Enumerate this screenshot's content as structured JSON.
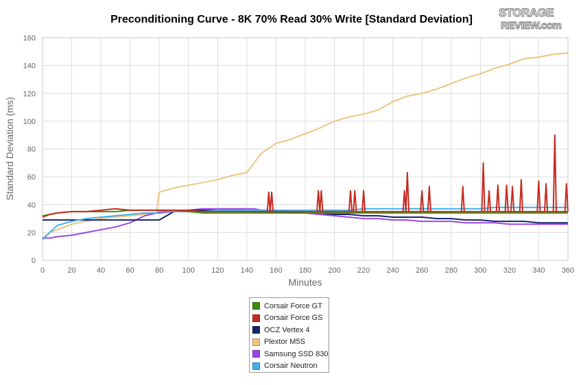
{
  "title": "Preconditioning Curve - 8K 70% Read 30% Write [Standard Deviation]",
  "logo": {
    "line1": "STORAGE",
    "line2": "REVIEW.com"
  },
  "colors": {
    "Corsair Force GT": "#3e8e0e",
    "Corsair Force GS": "#c62a22",
    "OCZ Vertex 4": "#16236e",
    "Plextor M5S": "#edc47e",
    "Samsung SSD 830": "#9a46e8",
    "Corsair Neutron": "#3fb0ec"
  },
  "chart_data": {
    "type": "line",
    "title": "Preconditioning Curve - 8K 70% Read 30% Write [Standard Deviation]",
    "xlabel": "Minutes",
    "ylabel": "Standard Deviation (ms)",
    "xlim": [
      0,
      360
    ],
    "ylim": [
      0,
      160
    ],
    "xticks": [
      0,
      20,
      40,
      60,
      80,
      100,
      120,
      140,
      160,
      180,
      200,
      220,
      240,
      260,
      280,
      300,
      320,
      340,
      360
    ],
    "yticks": [
      0,
      20,
      40,
      60,
      80,
      100,
      120,
      140,
      160
    ],
    "grid": true,
    "legend_position": "bottom-center",
    "x": [
      0,
      5,
      10,
      20,
      30,
      40,
      50,
      60,
      70,
      78,
      80,
      90,
      100,
      110,
      120,
      130,
      140,
      145,
      150,
      160,
      170,
      180,
      190,
      200,
      210,
      220,
      230,
      240,
      250,
      260,
      270,
      280,
      290,
      300,
      310,
      320,
      330,
      340,
      350,
      360
    ],
    "series": [
      {
        "name": "Corsair Force GT",
        "values": [
          32,
          33,
          34,
          35,
          35,
          35,
          35,
          36,
          36,
          36,
          36,
          36,
          35,
          34,
          34,
          34,
          34,
          34,
          34,
          34,
          34,
          34,
          34,
          34,
          34,
          34,
          34,
          34,
          34,
          34,
          34,
          34,
          34,
          34,
          34,
          34,
          34,
          34,
          34,
          34
        ]
      },
      {
        "name": "Corsair Force GS",
        "values": [
          31,
          33,
          34,
          35,
          35,
          36,
          37,
          36,
          36,
          36,
          36,
          36,
          36,
          35,
          35,
          35,
          35,
          35,
          35,
          35,
          35,
          35,
          35,
          35,
          35,
          35,
          35,
          35,
          35,
          35,
          35,
          35,
          35,
          35,
          35,
          35,
          35,
          35,
          35,
          35
        ]
      },
      {
        "name": "OCZ Vertex 4",
        "values": [
          29,
          29,
          29,
          29,
          29,
          29,
          29,
          29,
          29,
          29,
          29,
          35,
          36,
          36,
          36,
          36,
          36,
          35,
          35,
          35,
          34,
          34,
          34,
          33,
          33,
          32,
          32,
          31,
          31,
          31,
          30,
          30,
          29,
          29,
          28,
          28,
          28,
          27,
          27,
          27
        ]
      },
      {
        "name": "Plextor M5S",
        "values": [
          16,
          20,
          22,
          26,
          28,
          30,
          31,
          32,
          33,
          34,
          49,
          52,
          54,
          56,
          58,
          61,
          63,
          70,
          77,
          84,
          87,
          91,
          95,
          100,
          103,
          105,
          108,
          114,
          118,
          120,
          123,
          127,
          131,
          134,
          138,
          141,
          145,
          146,
          148,
          149
        ]
      },
      {
        "name": "Samsung SSD 830",
        "values": [
          16,
          16,
          17,
          18,
          20,
          22,
          24,
          27,
          32,
          34,
          34,
          35,
          36,
          37,
          37,
          37,
          37,
          37,
          36,
          36,
          35,
          34,
          33,
          32,
          31,
          30,
          30,
          29,
          29,
          28,
          28,
          28,
          27,
          27,
          27,
          26,
          26,
          26,
          26,
          26
        ]
      },
      {
        "name": "Corsair Neutron",
        "values": [
          15,
          20,
          25,
          28,
          30,
          31,
          32,
          33,
          34,
          34,
          35,
          35,
          35,
          35,
          36,
          36,
          36,
          36,
          36,
          36,
          36,
          36,
          36,
          36,
          36,
          37,
          37,
          37,
          37,
          37,
          37,
          37,
          37,
          37,
          38,
          38,
          38,
          38,
          38,
          38
        ]
      }
    ],
    "spikes": [
      {
        "series": "Corsair Force GS",
        "x": [
          155,
          157,
          189,
          191,
          211,
          214,
          220,
          248,
          250,
          260,
          265,
          288,
          302,
          306,
          312,
          318,
          322,
          328,
          340,
          345,
          351,
          359
        ],
        "values": [
          49,
          49,
          50,
          50,
          50,
          50,
          50,
          50,
          63,
          50,
          53,
          53,
          70,
          50,
          54,
          54,
          53,
          58,
          57,
          55,
          90,
          55
        ]
      }
    ]
  }
}
